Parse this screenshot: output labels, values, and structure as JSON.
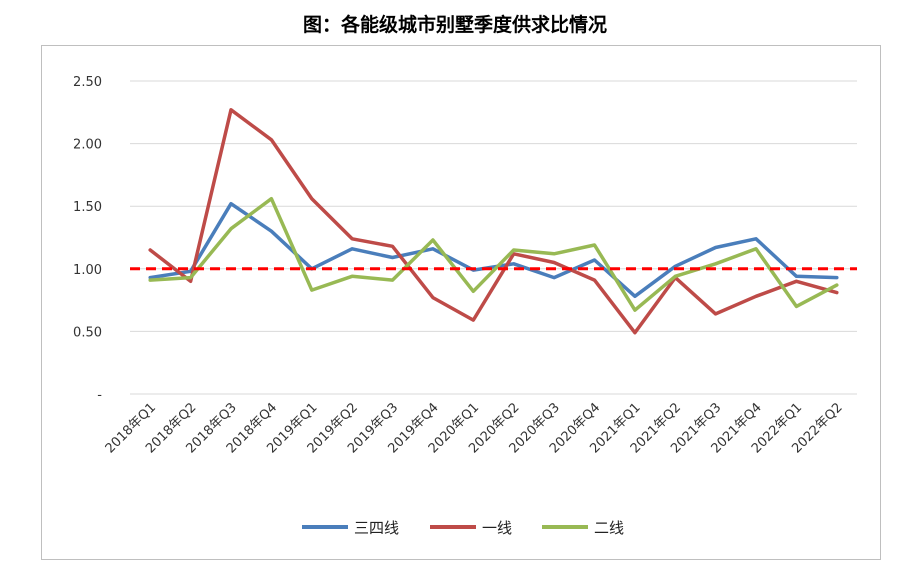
{
  "chart_data": {
    "type": "line",
    "title": "图：各能级城市别墅季度供求比情况",
    "categories": [
      "2018年Q1",
      "2018年Q2",
      "2018年Q3",
      "2018年Q4",
      "2019年Q1",
      "2019年Q2",
      "2019年Q3",
      "2019年Q4",
      "2020年Q1",
      "2020年Q2",
      "2020年Q3",
      "2020年Q4",
      "2021年Q1",
      "2021年Q2",
      "2021年Q3",
      "2021年Q4",
      "2022年Q1",
      "2022年Q2"
    ],
    "series": [
      {
        "name": "三四线",
        "color": "#4a7ebb",
        "values": [
          0.93,
          0.98,
          1.52,
          1.3,
          1.0,
          1.16,
          1.09,
          1.16,
          0.99,
          1.04,
          0.93,
          1.07,
          0.78,
          1.02,
          1.17,
          1.24,
          0.94,
          0.93
        ]
      },
      {
        "name": "一线",
        "color": "#be4b48",
        "values": [
          1.15,
          0.9,
          2.27,
          2.03,
          1.56,
          1.24,
          1.18,
          0.77,
          0.59,
          1.12,
          1.05,
          0.91,
          0.49,
          0.93,
          0.64,
          0.78,
          0.9,
          0.81
        ]
      },
      {
        "name": "二线",
        "color": "#98b954",
        "values": [
          0.91,
          0.93,
          1.32,
          1.56,
          0.83,
          0.94,
          0.91,
          1.23,
          0.82,
          1.15,
          1.12,
          1.19,
          0.67,
          0.94,
          1.04,
          1.16,
          0.7,
          0.87
        ]
      }
    ],
    "reference_line": {
      "value": 1.0,
      "color": "#ff0000",
      "style": "dashed"
    },
    "yticks": [
      "-",
      "0.50",
      "1.00",
      "1.50",
      "2.00",
      "2.50"
    ],
    "ylim": [
      0,
      2.5
    ],
    "grid": true,
    "legend": "bottom"
  }
}
